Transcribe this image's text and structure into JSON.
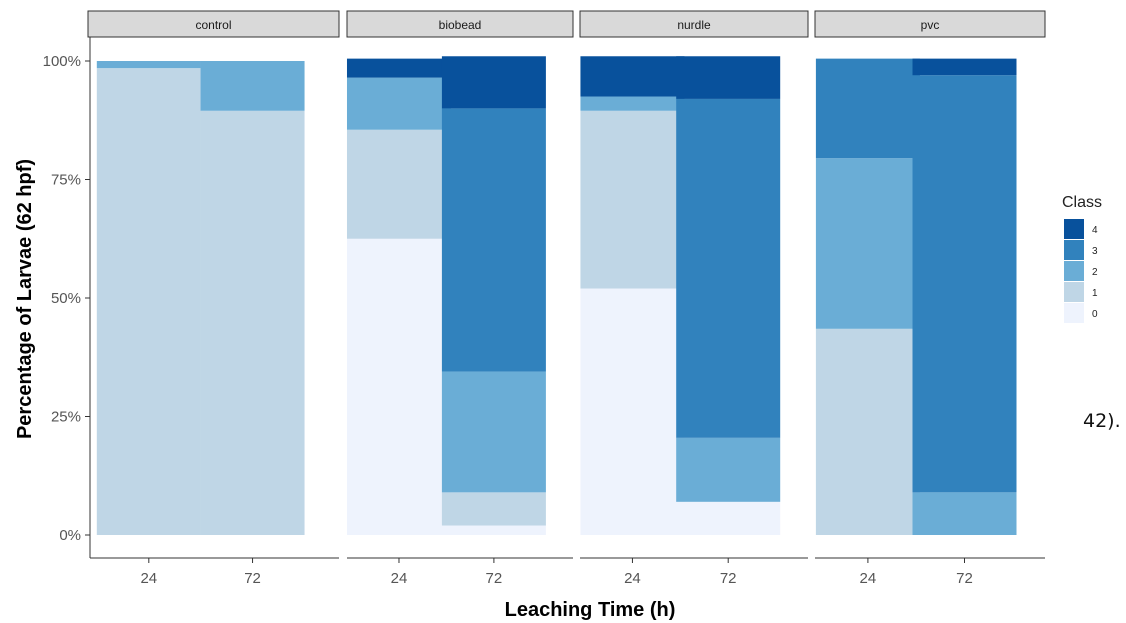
{
  "chart_data": {
    "type": "bar",
    "stacked": true,
    "facets": [
      "control",
      "biobead",
      "nurdle",
      "pvc"
    ],
    "categories": [
      "24",
      "72"
    ],
    "xlabel": "Leaching Time (h)",
    "ylabel": "Percentage of Larvae (62 hpf)",
    "ylim": [
      0,
      100
    ],
    "yticks": [
      "0%",
      "25%",
      "50%",
      "75%",
      "100%"
    ],
    "grid": false,
    "legend": {
      "title": "Class",
      "position": "right",
      "items": [
        "4",
        "3",
        "2",
        "1",
        "0"
      ]
    },
    "colors": {
      "0": "#eef3fd",
      "1": "#bfd6e6",
      "2": "#6aadd6",
      "3": "#3182bd",
      "4": "#08519c"
    },
    "series": [
      {
        "name": "0",
        "values": {
          "control": [
            0,
            0
          ],
          "biobead": [
            62.5,
            2
          ],
          "nurdle": [
            52,
            7
          ],
          "pvc": [
            0,
            0
          ]
        }
      },
      {
        "name": "1",
        "values": {
          "control": [
            98.5,
            89.5
          ],
          "biobead": [
            23,
            7
          ],
          "nurdle": [
            37.5,
            0
          ],
          "pvc": [
            43.5,
            0
          ]
        }
      },
      {
        "name": "2",
        "values": {
          "control": [
            1.5,
            10.5
          ],
          "biobead": [
            11,
            25.5
          ],
          "nurdle": [
            3,
            13.5
          ],
          "pvc": [
            36,
            9
          ]
        }
      },
      {
        "name": "3",
        "values": {
          "control": [
            0,
            0
          ],
          "biobead": [
            0,
            55.5
          ],
          "nurdle": [
            0,
            71.5
          ],
          "pvc": [
            21,
            88
          ]
        }
      },
      {
        "name": "4",
        "values": {
          "control": [
            0,
            0
          ],
          "biobead": [
            4,
            11
          ],
          "nurdle": [
            8.5,
            9
          ],
          "pvc": [
            0,
            3.5
          ]
        }
      }
    ]
  },
  "stray_text": "42)."
}
